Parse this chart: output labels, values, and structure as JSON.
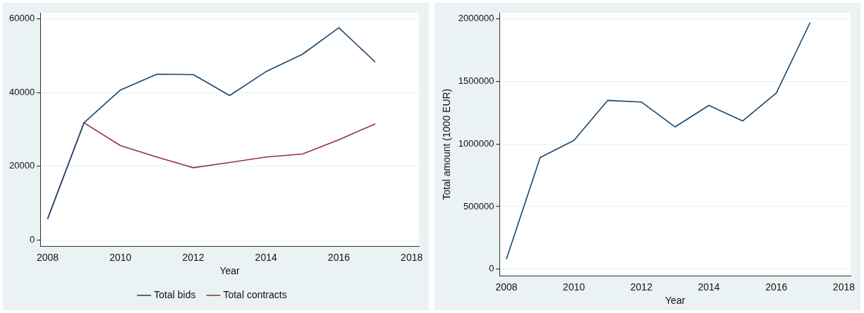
{
  "chart_data": [
    {
      "type": "line",
      "xlabel": "Year",
      "x": [
        2008,
        2009,
        2010,
        2011,
        2012,
        2013,
        2014,
        2015,
        2016,
        2017
      ],
      "series": [
        {
          "name": "Total bids",
          "color": "#1a476f",
          "values": [
            5700,
            31800,
            40700,
            45000,
            44900,
            39200,
            45700,
            50400,
            57600,
            48300
          ]
        },
        {
          "name": "Total contracts",
          "color": "#90353b",
          "values": [
            5700,
            31800,
            25600,
            22500,
            19600,
            21000,
            22500,
            23300,
            27200,
            31500
          ]
        }
      ],
      "xlim": [
        2007.8,
        2018.2
      ],
      "xticks": [
        2008,
        2010,
        2012,
        2014,
        2016,
        2018
      ],
      "ylim": [
        -1750,
        61700
      ],
      "yticks": [
        0,
        20000,
        40000,
        60000
      ],
      "grid": "y",
      "legend": "bottom",
      "marker": "none",
      "line_style": "solid"
    },
    {
      "type": "line",
      "xlabel": "Year",
      "ylabel": "Total amount (1000 EUR)",
      "x": [
        2008,
        2009,
        2010,
        2011,
        2012,
        2013,
        2014,
        2015,
        2016,
        2017
      ],
      "series": [
        {
          "color": "#1a476f",
          "values": [
            81000,
            892000,
            1029000,
            1349000,
            1336000,
            1137000,
            1309000,
            1185000,
            1408000,
            1971000
          ]
        }
      ],
      "xlim": [
        2007.8,
        2018.2
      ],
      "xticks": [
        2008,
        2010,
        2012,
        2014,
        2016,
        2018
      ],
      "ylim": [
        -54000,
        2050000
      ],
      "yticks": [
        0,
        500000,
        1000000,
        1500000,
        2000000
      ],
      "grid": "y",
      "legend": false,
      "marker": "none",
      "line_style": "solid"
    }
  ]
}
